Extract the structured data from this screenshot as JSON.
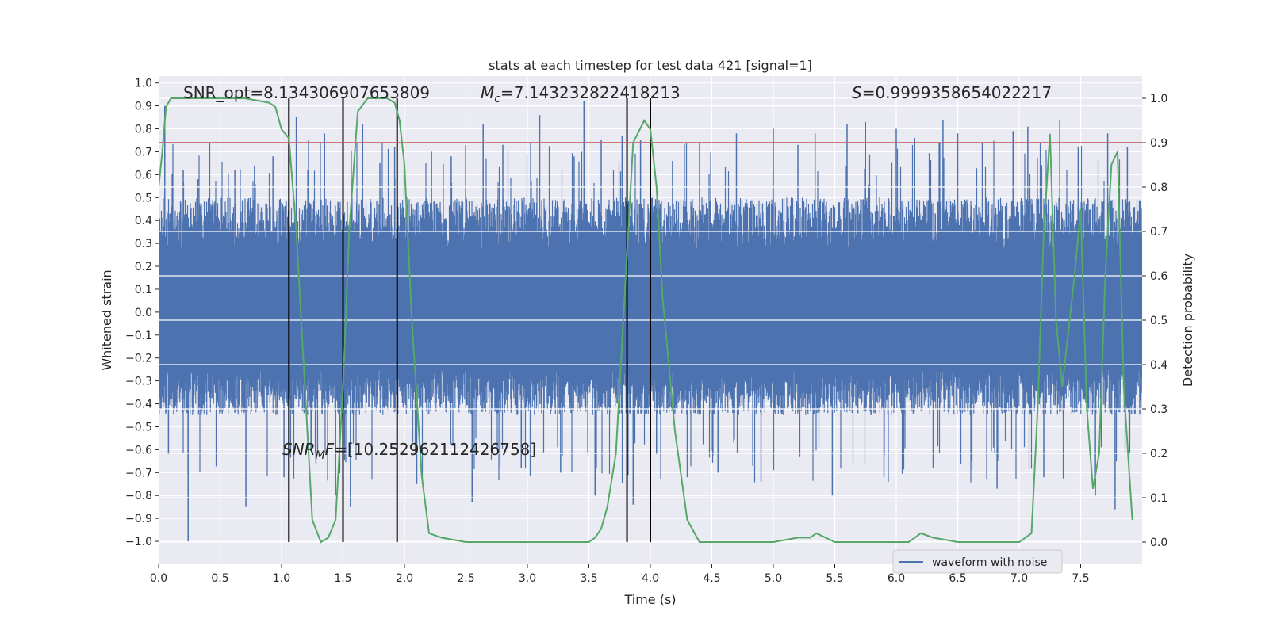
{
  "chart_data": {
    "type": "line",
    "title": "stats at each timestep for test data 421 [signal=1]",
    "xlabel": "Time (s)",
    "ylabel_left": "Whitened strain",
    "ylabel_right": "Detection probability",
    "xlim": [
      0,
      8
    ],
    "ylim_left": [
      -1.1,
      1.03
    ],
    "ylim_right": [
      -0.05,
      1.05
    ],
    "x_ticks": [
      0.0,
      0.5,
      1.0,
      1.5,
      2.0,
      2.5,
      3.0,
      3.5,
      4.0,
      4.5,
      5.0,
      5.5,
      6.0,
      6.5,
      7.0,
      7.5
    ],
    "x_tick_labels": [
      "0.0",
      "0.5",
      "1.0",
      "1.5",
      "2.0",
      "2.5",
      "3.0",
      "3.5",
      "4.0",
      "4.5",
      "5.0",
      "5.5",
      "6.0",
      "6.5",
      "7.0",
      "7.5"
    ],
    "y_left_ticks": [
      1.0,
      0.9,
      0.8,
      0.7,
      0.6,
      0.5,
      0.4,
      0.3,
      0.2,
      0.1,
      0.0,
      -0.1,
      -0.2,
      -0.3,
      -0.4,
      -0.5,
      -0.6,
      -0.7,
      -0.8,
      -0.9,
      -1.0
    ],
    "y_left_tick_labels": [
      "1.0",
      "0.9",
      "0.8",
      "0.7",
      "0.6",
      "0.5",
      "0.4",
      "0.3",
      "0.2",
      "0.1",
      "0.0",
      "−0.1",
      "−0.2",
      "−0.3",
      "−0.4",
      "−0.5",
      "−0.6",
      "−0.7",
      "−0.8",
      "−0.9",
      "−1.0"
    ],
    "y_right_ticks": [
      1.0,
      0.9,
      0.8,
      0.7,
      0.6,
      0.5,
      0.4,
      0.3,
      0.2,
      0.1,
      0.0
    ],
    "y_right_tick_labels": [
      "1.0",
      "0.9",
      "0.8",
      "0.7",
      "0.6",
      "0.5",
      "0.4",
      "0.3",
      "0.2",
      "0.1",
      "0.0"
    ],
    "threshold": 0.9,
    "vertical_lines": [
      1.06,
      1.5,
      1.94,
      3.81,
      4.0
    ],
    "waveform": {
      "name": "waveform with noise",
      "color": "#4c72b0",
      "typical_envelope": [
        -0.45,
        0.5
      ],
      "spikes": [
        [
          0.05,
          0.9
        ],
        [
          0.08,
          -0.62
        ],
        [
          0.2,
          0.62
        ],
        [
          0.24,
          -1.0
        ],
        [
          0.32,
          0.58
        ],
        [
          0.47,
          -0.66
        ],
        [
          0.62,
          0.62
        ],
        [
          0.71,
          -0.85
        ],
        [
          0.78,
          0.64
        ],
        [
          0.93,
          0.68
        ],
        [
          1.02,
          -0.72
        ],
        [
          1.12,
          0.85
        ],
        [
          1.22,
          0.75
        ],
        [
          1.28,
          -0.66
        ],
        [
          1.35,
          0.78
        ],
        [
          1.44,
          -0.8
        ],
        [
          1.56,
          -0.85
        ],
        [
          1.66,
          0.82
        ],
        [
          1.8,
          0.65
        ],
        [
          1.92,
          0.72
        ],
        [
          2.1,
          -0.75
        ],
        [
          2.22,
          0.7
        ],
        [
          2.38,
          0.68
        ],
        [
          2.55,
          -0.83
        ],
        [
          2.64,
          0.82
        ],
        [
          2.8,
          0.73
        ],
        [
          2.95,
          -0.68
        ],
        [
          3.1,
          0.86
        ],
        [
          3.27,
          -0.7
        ],
        [
          3.38,
          0.68
        ],
        [
          3.46,
          0.92
        ],
        [
          3.55,
          -0.8
        ],
        [
          3.6,
          0.75
        ],
        [
          3.77,
          0.77
        ],
        [
          3.86,
          -0.84
        ],
        [
          3.92,
          0.75
        ],
        [
          4.05,
          -0.62
        ],
        [
          4.18,
          0.66
        ],
        [
          4.3,
          -0.72
        ],
        [
          4.4,
          0.74
        ],
        [
          4.55,
          -0.7
        ],
        [
          4.7,
          0.78
        ],
        [
          4.9,
          -0.74
        ],
        [
          5.0,
          0.8
        ],
        [
          5.2,
          0.73
        ],
        [
          5.34,
          0.78
        ],
        [
          5.48,
          -0.8
        ],
        [
          5.6,
          0.82
        ],
        [
          5.75,
          0.83
        ],
        [
          5.9,
          -0.72
        ],
        [
          6.0,
          0.8
        ],
        [
          6.15,
          0.76
        ],
        [
          6.3,
          -0.68
        ],
        [
          6.38,
          0.84
        ],
        [
          6.5,
          0.78
        ],
        [
          6.7,
          0.74
        ],
        [
          6.82,
          -0.77
        ],
        [
          6.95,
          0.79
        ],
        [
          7.07,
          0.81
        ],
        [
          7.2,
          -0.72
        ],
        [
          7.33,
          0.84
        ],
        [
          7.48,
          0.72
        ],
        [
          7.62,
          -0.8
        ],
        [
          7.72,
          0.78
        ],
        [
          7.78,
          -0.86
        ],
        [
          7.88,
          0.72
        ]
      ]
    },
    "probability": {
      "color": "#55a868",
      "x": [
        0.0,
        0.03,
        0.06,
        0.1,
        0.2,
        0.4,
        0.7,
        0.9,
        0.95,
        1.0,
        1.06,
        1.12,
        1.18,
        1.25,
        1.32,
        1.38,
        1.44,
        1.5,
        1.55,
        1.62,
        1.7,
        1.86,
        1.92,
        1.96,
        2.0,
        2.06,
        2.14,
        2.2,
        2.3,
        2.5,
        2.8,
        3.0,
        3.3,
        3.5,
        3.55,
        3.6,
        3.65,
        3.72,
        3.8,
        3.86,
        3.95,
        4.0,
        4.05,
        4.1,
        4.2,
        4.3,
        4.4,
        4.6,
        5.0,
        5.2,
        5.3,
        5.35,
        5.5,
        6.0,
        6.1,
        6.15,
        6.2,
        6.3,
        6.5,
        7.0,
        7.05,
        7.1,
        7.15,
        7.2,
        7.25,
        7.3,
        7.35,
        7.45,
        7.5,
        7.55,
        7.6,
        7.65,
        7.7,
        7.75,
        7.8,
        7.85,
        7.92
      ],
      "y": [
        0.8,
        0.88,
        0.98,
        1.0,
        1.0,
        1.0,
        1.0,
        0.99,
        0.98,
        0.93,
        0.91,
        0.7,
        0.4,
        0.05,
        0.0,
        0.01,
        0.05,
        0.35,
        0.7,
        0.97,
        1.0,
        1.0,
        0.99,
        0.95,
        0.85,
        0.5,
        0.15,
        0.02,
        0.01,
        0.0,
        0.0,
        0.0,
        0.0,
        0.0,
        0.01,
        0.03,
        0.08,
        0.2,
        0.6,
        0.9,
        0.95,
        0.93,
        0.8,
        0.55,
        0.25,
        0.05,
        0.0,
        0.0,
        0.0,
        0.01,
        0.01,
        0.02,
        0.0,
        0.0,
        0.0,
        0.01,
        0.02,
        0.01,
        0.0,
        0.0,
        0.01,
        0.02,
        0.3,
        0.7,
        0.92,
        0.5,
        0.35,
        0.6,
        0.75,
        0.3,
        0.12,
        0.2,
        0.6,
        0.85,
        0.88,
        0.35,
        0.05
      ]
    },
    "annotations": {
      "snr_opt": "SNR_opt=8.134306907653809",
      "mc_symbol": "M",
      "mc_sub": "c",
      "mc_value": "=7.143232822418213",
      "s_symbol": "S",
      "s_value": "=0.9999358654022217",
      "snr_mf_symbol": "SNR",
      "snr_mf_sub": "M",
      "snr_mf_f": "F",
      "snr_mf_value": "=[10.252962112426758]"
    },
    "legend": {
      "label": "waveform with noise",
      "loc": "lower right"
    },
    "colors": {
      "background": "#eaeaf2",
      "grid": "#ffffff",
      "threshold": "#c44e52",
      "vline": "#000000"
    }
  }
}
